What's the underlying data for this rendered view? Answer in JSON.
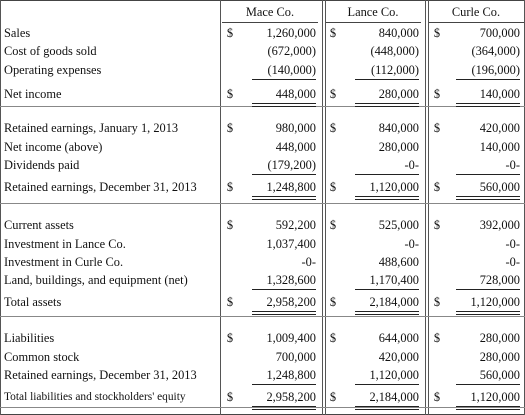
{
  "columns": [
    "Mace Co.",
    "Lance Co.",
    "Curle Co."
  ],
  "currency_symbol": "$",
  "sections": [
    {
      "rows": [
        {
          "label": "Sales",
          "dollar": [
            true,
            true,
            true
          ],
          "values": [
            "1,260,000",
            "840,000",
            "700,000"
          ]
        },
        {
          "label": "Cost of goods sold",
          "dollar": [
            false,
            false,
            false
          ],
          "values": [
            "(672,000)",
            "(448,000)",
            "(364,000)"
          ]
        },
        {
          "label": "Operating expenses",
          "dollar": [
            false,
            false,
            false
          ],
          "values": [
            "(140,000)",
            "(112,000)",
            "(196,000)"
          ]
        },
        {
          "label": "Net income",
          "dollar": [
            true,
            true,
            true
          ],
          "values": [
            "448,000",
            "280,000",
            "140,000"
          ]
        }
      ]
    },
    {
      "rows": [
        {
          "label": "Retained earnings, January 1, 2013",
          "dollar": [
            true,
            true,
            true
          ],
          "values": [
            "980,000",
            "840,000",
            "420,000"
          ]
        },
        {
          "label": "Net income (above)",
          "dollar": [
            false,
            false,
            false
          ],
          "values": [
            "448,000",
            "280,000",
            "140,000"
          ]
        },
        {
          "label": "Dividends paid",
          "dollar": [
            false,
            false,
            false
          ],
          "values": [
            "(179,200)",
            "-0-",
            "-0-"
          ]
        },
        {
          "label": "Retained earnings, December 31, 2013",
          "dollar": [
            true,
            true,
            true
          ],
          "values": [
            "1,248,800",
            "1,120,000",
            "560,000"
          ]
        }
      ]
    },
    {
      "rows": [
        {
          "label": "Current assets",
          "dollar": [
            true,
            true,
            true
          ],
          "values": [
            "592,200",
            "525,000",
            "392,000"
          ]
        },
        {
          "label": "Investment in Lance Co.",
          "dollar": [
            false,
            false,
            false
          ],
          "values": [
            "1,037,400",
            "-0-",
            "-0-"
          ]
        },
        {
          "label": "Investment in Curle Co.",
          "dollar": [
            false,
            false,
            false
          ],
          "values": [
            "-0-",
            "488,600",
            "-0-"
          ]
        },
        {
          "label": "Land, buildings, and equipment (net)",
          "dollar": [
            false,
            false,
            false
          ],
          "values": [
            "1,328,600",
            "1,170,400",
            "728,000"
          ]
        },
        {
          "label": "Total assets",
          "dollar": [
            true,
            true,
            true
          ],
          "values": [
            "2,958,200",
            "2,184,000",
            "1,120,000"
          ]
        }
      ]
    },
    {
      "rows": [
        {
          "label": "Liabilities",
          "dollar": [
            true,
            true,
            true
          ],
          "values": [
            "1,009,400",
            "644,000",
            "280,000"
          ]
        },
        {
          "label": "Common stock",
          "dollar": [
            false,
            false,
            false
          ],
          "values": [
            "700,000",
            "420,000",
            "280,000"
          ]
        },
        {
          "label": "Retained earnings, December 31, 2013",
          "dollar": [
            false,
            false,
            false
          ],
          "values": [
            "1,248,800",
            "1,120,000",
            "560,000"
          ]
        },
        {
          "label": "Total liabilities and stockholders' equity",
          "dollar": [
            true,
            true,
            true
          ],
          "values": [
            "2,958,200",
            "2,184,000",
            "1,120,000"
          ]
        }
      ]
    }
  ]
}
